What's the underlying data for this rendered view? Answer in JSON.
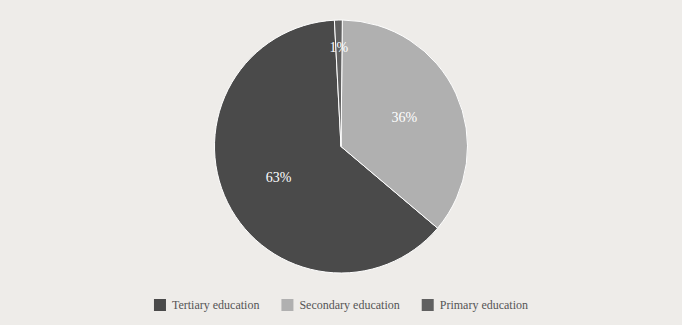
{
  "chart_data": {
    "type": "pie",
    "categories": [
      "Tertiary education",
      "Secondary education",
      "Primary education"
    ],
    "values": [
      63,
      36,
      1
    ],
    "value_labels": [
      "63%",
      "36%",
      "1%"
    ],
    "colors": [
      "#4a4a4a",
      "#b0b0b0",
      "#606060"
    ],
    "data_labels": true,
    "legend": "bottom"
  }
}
